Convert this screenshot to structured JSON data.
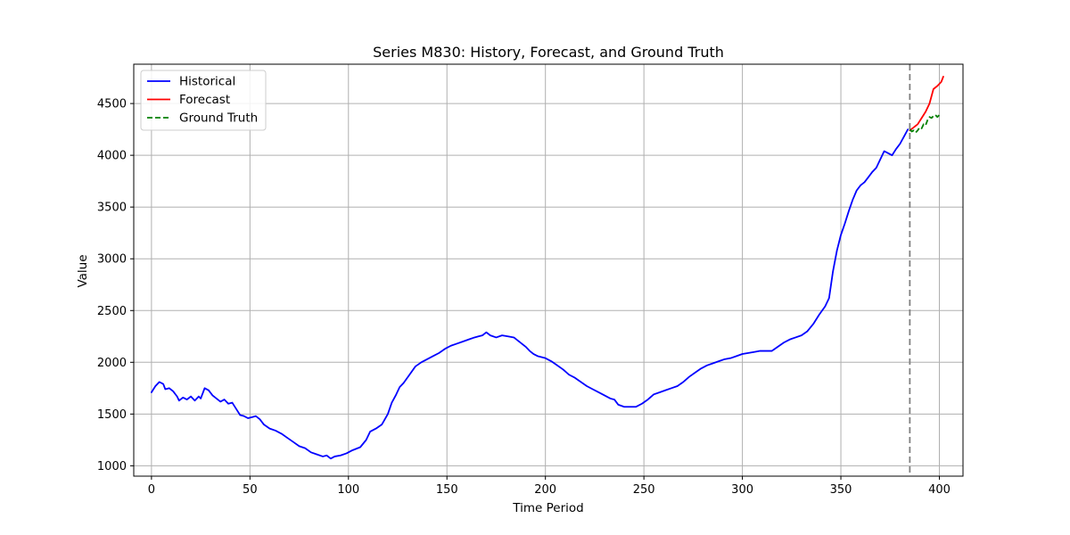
{
  "chart_data": {
    "type": "line",
    "title": "Series M830: History, Forecast, and Ground Truth",
    "xlabel": "Time Period",
    "ylabel": "Value",
    "xlim": [
      -9,
      412
    ],
    "ylim": [
      900,
      4880
    ],
    "xticks": [
      0,
      50,
      100,
      150,
      200,
      250,
      300,
      350,
      400
    ],
    "yticks": [
      1000,
      1500,
      2000,
      2500,
      3000,
      3500,
      4000,
      4500
    ],
    "grid": true,
    "legend_position": "upper left",
    "forecast_start": 385,
    "colors": {
      "historical": "#0000ff",
      "forecast": "#ff0000",
      "ground_truth": "#008000",
      "vline": "#808080",
      "grid": "#b0b0b0"
    },
    "series": [
      {
        "name": "Historical",
        "style": "solid",
        "color": "#0000ff",
        "points": [
          [
            0,
            1710
          ],
          [
            2,
            1770
          ],
          [
            4,
            1810
          ],
          [
            6,
            1790
          ],
          [
            7,
            1740
          ],
          [
            9,
            1750
          ],
          [
            11,
            1720
          ],
          [
            13,
            1670
          ],
          [
            14,
            1630
          ],
          [
            16,
            1660
          ],
          [
            18,
            1640
          ],
          [
            20,
            1670
          ],
          [
            22,
            1630
          ],
          [
            24,
            1670
          ],
          [
            25,
            1650
          ],
          [
            26,
            1700
          ],
          [
            27,
            1750
          ],
          [
            29,
            1730
          ],
          [
            31,
            1680
          ],
          [
            33,
            1650
          ],
          [
            35,
            1620
          ],
          [
            37,
            1640
          ],
          [
            39,
            1600
          ],
          [
            41,
            1610
          ],
          [
            43,
            1550
          ],
          [
            45,
            1490
          ],
          [
            47,
            1480
          ],
          [
            49,
            1460
          ],
          [
            51,
            1470
          ],
          [
            53,
            1480
          ],
          [
            55,
            1450
          ],
          [
            57,
            1400
          ],
          [
            60,
            1360
          ],
          [
            63,
            1340
          ],
          [
            66,
            1310
          ],
          [
            69,
            1270
          ],
          [
            72,
            1230
          ],
          [
            75,
            1190
          ],
          [
            78,
            1170
          ],
          [
            81,
            1130
          ],
          [
            84,
            1110
          ],
          [
            87,
            1090
          ],
          [
            89,
            1100
          ],
          [
            91,
            1070
          ],
          [
            93,
            1090
          ],
          [
            96,
            1100
          ],
          [
            99,
            1120
          ],
          [
            102,
            1150
          ],
          [
            106,
            1180
          ],
          [
            109,
            1250
          ],
          [
            111,
            1330
          ],
          [
            114,
            1360
          ],
          [
            117,
            1400
          ],
          [
            120,
            1500
          ],
          [
            122,
            1610
          ],
          [
            124,
            1680
          ],
          [
            126,
            1760
          ],
          [
            128,
            1800
          ],
          [
            131,
            1880
          ],
          [
            134,
            1960
          ],
          [
            137,
            2000
          ],
          [
            140,
            2030
          ],
          [
            143,
            2060
          ],
          [
            146,
            2090
          ],
          [
            149,
            2130
          ],
          [
            152,
            2160
          ],
          [
            155,
            2180
          ],
          [
            158,
            2200
          ],
          [
            161,
            2220
          ],
          [
            164,
            2240
          ],
          [
            166,
            2250
          ],
          [
            168,
            2260
          ],
          [
            170,
            2290
          ],
          [
            172,
            2260
          ],
          [
            175,
            2240
          ],
          [
            178,
            2260
          ],
          [
            181,
            2250
          ],
          [
            184,
            2240
          ],
          [
            186,
            2210
          ],
          [
            188,
            2180
          ],
          [
            190,
            2150
          ],
          [
            192,
            2110
          ],
          [
            194,
            2080
          ],
          [
            196,
            2060
          ],
          [
            198,
            2050
          ],
          [
            200,
            2040
          ],
          [
            203,
            2010
          ],
          [
            206,
            1970
          ],
          [
            209,
            1930
          ],
          [
            212,
            1880
          ],
          [
            215,
            1850
          ],
          [
            218,
            1810
          ],
          [
            221,
            1770
          ],
          [
            224,
            1740
          ],
          [
            227,
            1710
          ],
          [
            230,
            1680
          ],
          [
            233,
            1650
          ],
          [
            235,
            1640
          ],
          [
            237,
            1590
          ],
          [
            240,
            1570
          ],
          [
            243,
            1570
          ],
          [
            246,
            1570
          ],
          [
            249,
            1600
          ],
          [
            252,
            1640
          ],
          [
            255,
            1690
          ],
          [
            258,
            1710
          ],
          [
            261,
            1730
          ],
          [
            264,
            1750
          ],
          [
            267,
            1770
          ],
          [
            270,
            1810
          ],
          [
            273,
            1860
          ],
          [
            276,
            1900
          ],
          [
            279,
            1940
          ],
          [
            282,
            1970
          ],
          [
            285,
            1990
          ],
          [
            288,
            2010
          ],
          [
            291,
            2030
          ],
          [
            294,
            2040
          ],
          [
            297,
            2060
          ],
          [
            300,
            2080
          ],
          [
            303,
            2090
          ],
          [
            306,
            2100
          ],
          [
            309,
            2110
          ],
          [
            312,
            2110
          ],
          [
            315,
            2110
          ],
          [
            318,
            2150
          ],
          [
            321,
            2190
          ],
          [
            324,
            2220
          ],
          [
            327,
            2240
          ],
          [
            330,
            2260
          ],
          [
            333,
            2300
          ],
          [
            336,
            2370
          ],
          [
            339,
            2460
          ],
          [
            342,
            2540
          ],
          [
            344,
            2620
          ],
          [
            346,
            2880
          ],
          [
            348,
            3080
          ],
          [
            350,
            3230
          ],
          [
            352,
            3340
          ],
          [
            354,
            3460
          ],
          [
            356,
            3570
          ],
          [
            358,
            3660
          ],
          [
            360,
            3710
          ],
          [
            362,
            3740
          ],
          [
            364,
            3790
          ],
          [
            366,
            3840
          ],
          [
            368,
            3880
          ],
          [
            370,
            3960
          ],
          [
            372,
            4040
          ],
          [
            374,
            4020
          ],
          [
            376,
            4000
          ],
          [
            378,
            4060
          ],
          [
            380,
            4110
          ],
          [
            382,
            4180
          ],
          [
            384,
            4250
          ]
        ]
      },
      {
        "name": "Forecast",
        "style": "solid",
        "color": "#ff0000",
        "points": [
          [
            385,
            4240
          ],
          [
            387,
            4270
          ],
          [
            389,
            4300
          ],
          [
            391,
            4360
          ],
          [
            393,
            4420
          ],
          [
            395,
            4500
          ],
          [
            397,
            4640
          ],
          [
            399,
            4670
          ],
          [
            401,
            4710
          ],
          [
            402,
            4760
          ]
        ]
      },
      {
        "name": "Ground Truth",
        "style": "dashed",
        "color": "#008000",
        "points": [
          [
            385,
            4250
          ],
          [
            386,
            4230
          ],
          [
            387,
            4240
          ],
          [
            388,
            4220
          ],
          [
            389,
            4240
          ],
          [
            390,
            4270
          ],
          [
            391,
            4260
          ],
          [
            392,
            4300
          ],
          [
            393,
            4290
          ],
          [
            394,
            4340
          ],
          [
            395,
            4370
          ],
          [
            396,
            4360
          ],
          [
            397,
            4380
          ],
          [
            398,
            4390
          ],
          [
            399,
            4370
          ],
          [
            400,
            4390
          ],
          [
            401,
            4390
          ]
        ]
      }
    ]
  }
}
